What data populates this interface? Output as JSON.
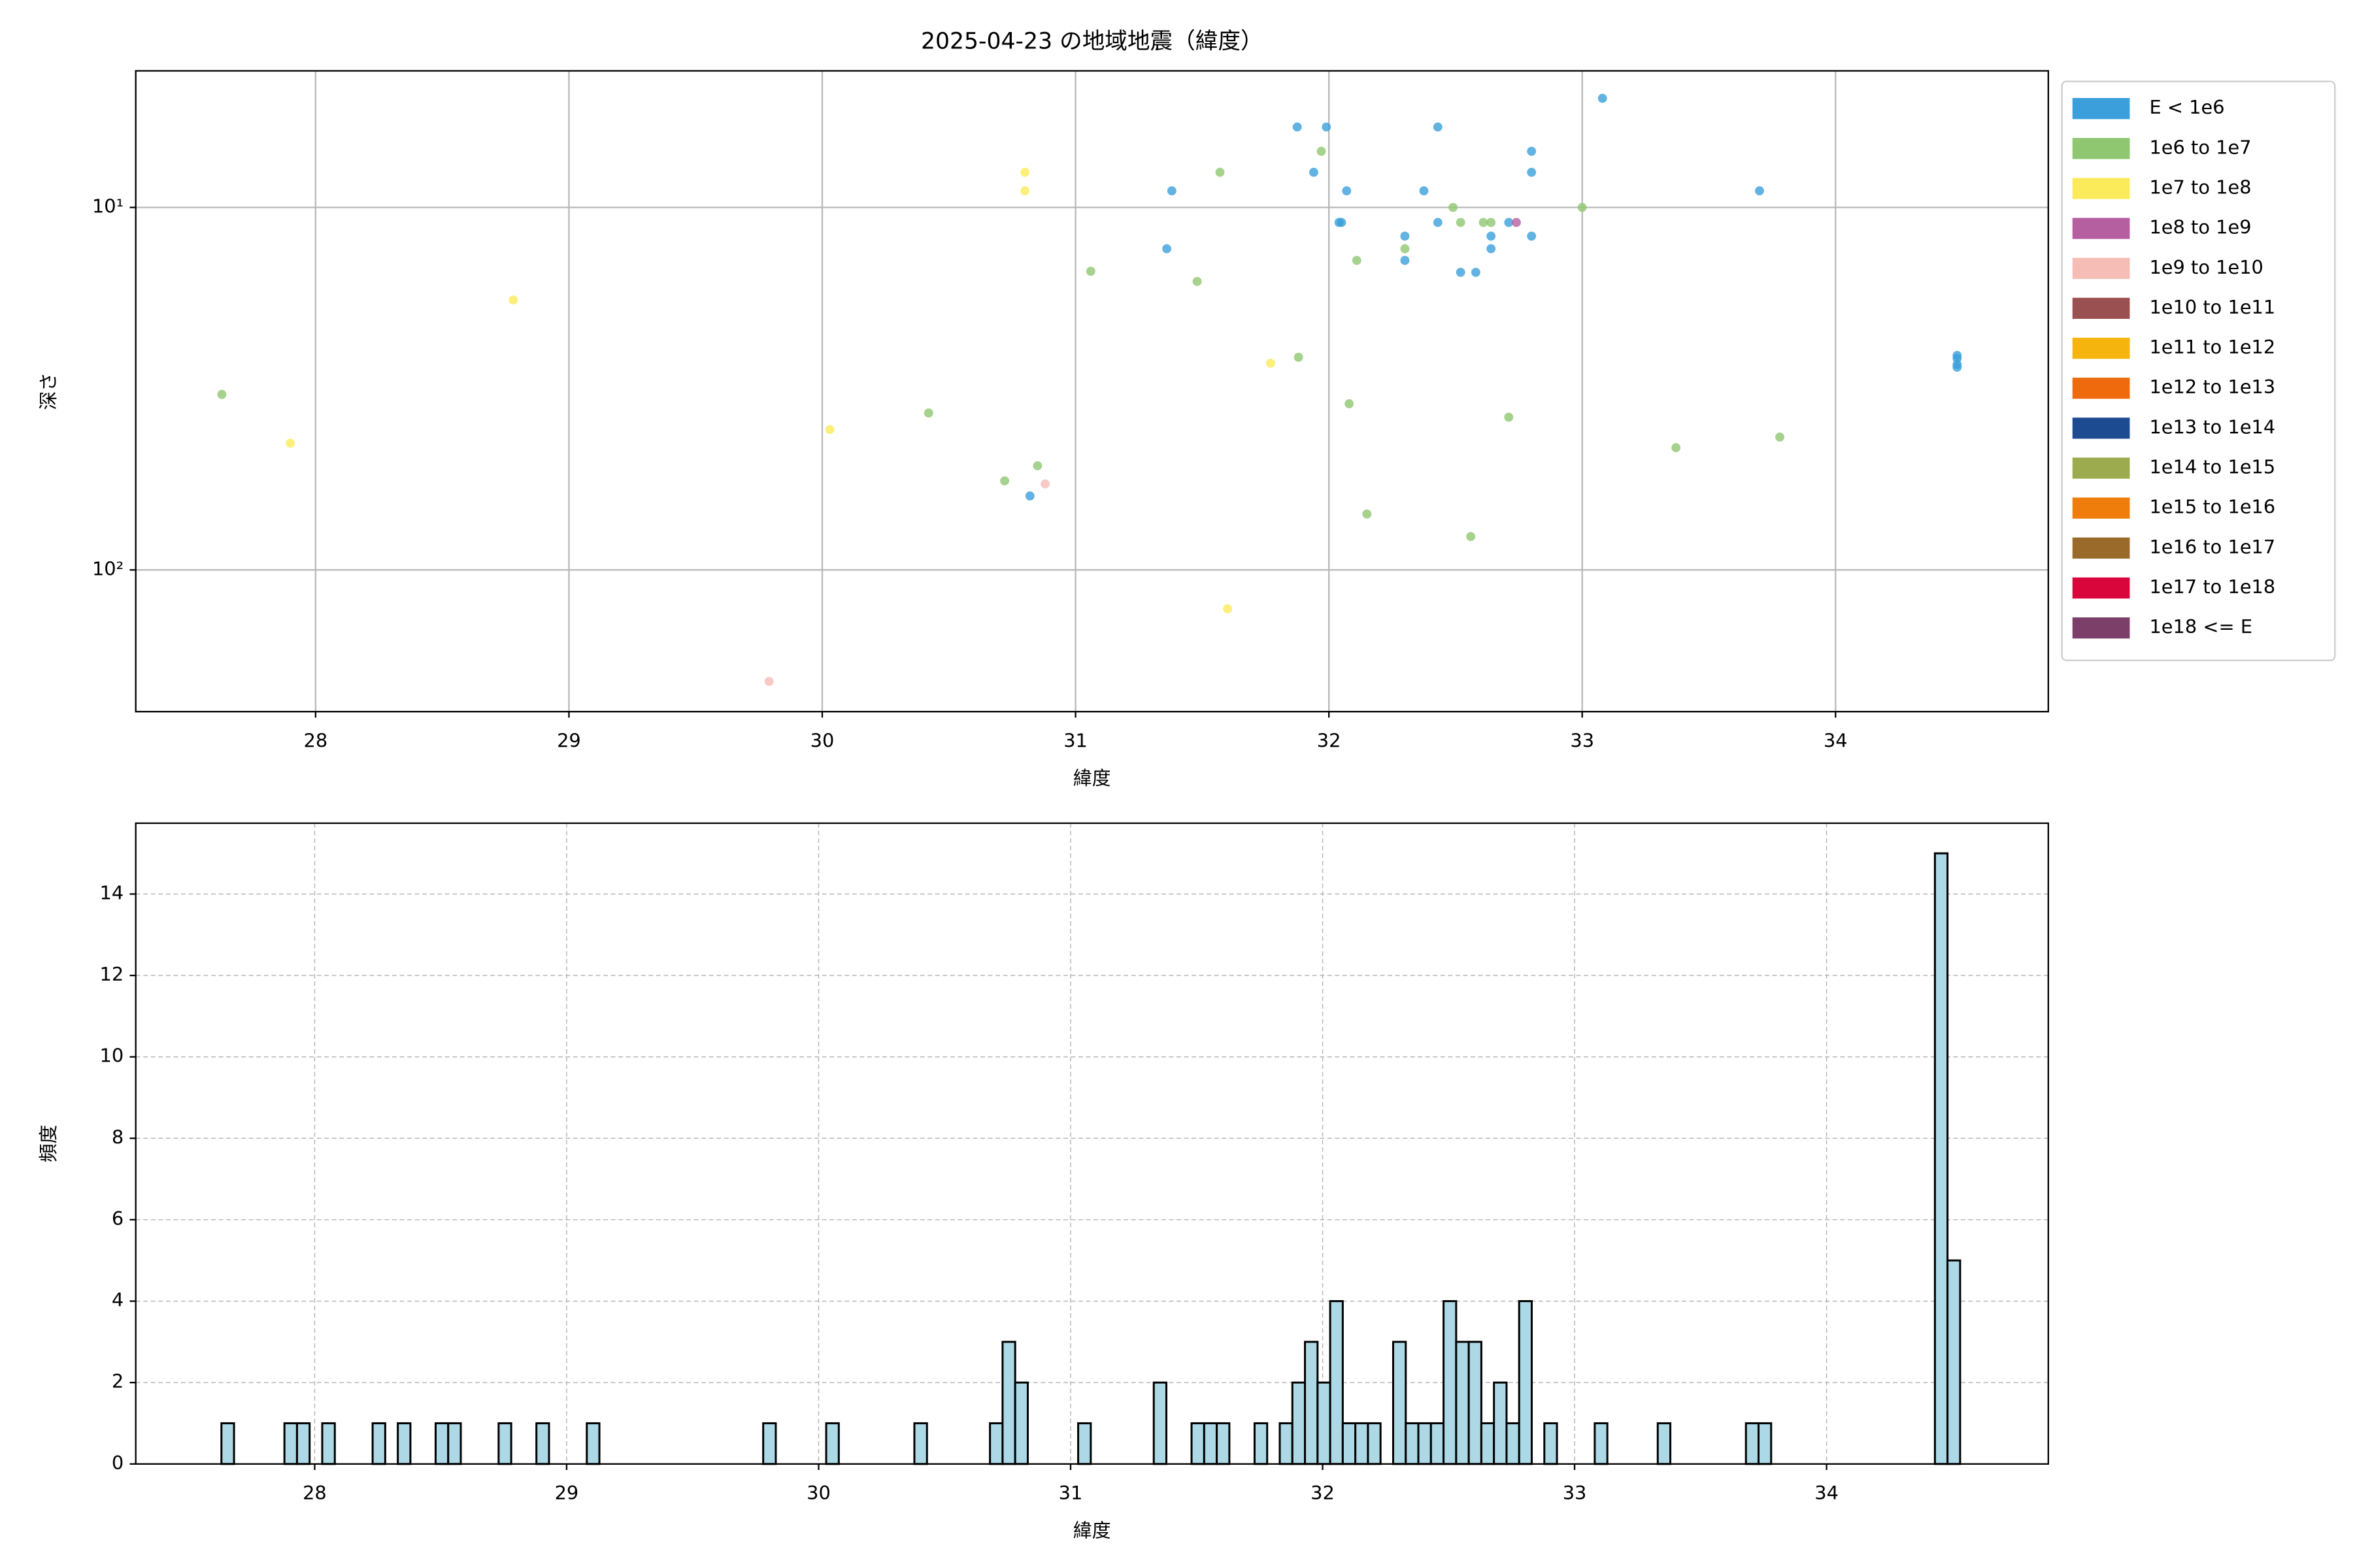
{
  "chart_data": [
    {
      "type": "scatter",
      "title": "2025-04-23 の地域地震（緯度）",
      "x_label": "緯度",
      "y_label": "深さ",
      "xlim": [
        27.29,
        34.84
      ],
      "xticks": [
        28,
        29,
        30,
        31,
        32,
        33,
        34
      ],
      "ylim": [
        4.2,
        246
      ],
      "log_y": true,
      "invert_y": true,
      "yticks": [
        {
          "value": 10,
          "label": "10¹"
        },
        {
          "value": 100,
          "label": "10²"
        }
      ],
      "grid": "solid",
      "legend": "outside-upper-right",
      "series": [
        {
          "name": "E < 1e6",
          "color": "#3b9fdb",
          "x": [
            31.875,
            31.99,
            32.43,
            33.08,
            31.94,
            31.38,
            32.07,
            32.375,
            33.7,
            32.04,
            32.05,
            32.43,
            32.71,
            32.3,
            32.8,
            31.36,
            32.3,
            32.52,
            32.58,
            32.64,
            32.64,
            32.8,
            32.8,
            30.82,
            34.48,
            34.48,
            34.48,
            34.48
          ],
          "values": [
            6.0,
            6.0,
            6.0,
            5.0,
            8.0,
            9.0,
            9.0,
            9.0,
            9.0,
            11.0,
            11.0,
            11.0,
            11.0,
            12.0,
            12.0,
            13.0,
            14.0,
            15.1,
            15.1,
            12.0,
            13.0,
            7.0,
            8.0,
            62.5,
            25.6,
            26.1,
            27.1,
            27.6
          ]
        },
        {
          "name": "1e6 to 1e7",
          "color": "#8ec76f",
          "x": [
            27.63,
            31.57,
            31.97,
            32.49,
            32.52,
            32.61,
            32.64,
            33.0,
            32.3,
            31.06,
            32.11,
            31.48,
            31.88,
            32.08,
            30.42,
            32.71,
            33.78,
            33.37,
            30.85,
            30.72,
            32.15,
            32.56
          ],
          "values": [
            32.8,
            8.0,
            7.0,
            10.0,
            11.0,
            11.0,
            11.0,
            10.0,
            13.0,
            15.0,
            14.0,
            16.0,
            25.9,
            34.8,
            36.9,
            37.9,
            43.0,
            46.0,
            51.6,
            56.8,
            70.1,
            80.9
          ]
        },
        {
          "name": "1e7 to 1e8",
          "color": "#fbeb5b",
          "x": [
            30.8,
            30.8,
            28.78,
            27.9,
            30.03,
            31.77,
            31.6
          ],
          "values": [
            8.0,
            9.0,
            18.0,
            44.7,
            41.0,
            26.9,
            128
          ]
        },
        {
          "name": "1e8 to 1e9",
          "color": "#b55fa0",
          "x": [
            32.74
          ],
          "values": [
            11.0
          ]
        },
        {
          "name": "1e9 to 1e10",
          "color": "#f5bdb6",
          "x": [
            30.88,
            29.79
          ],
          "values": [
            57.9,
            203
          ]
        },
        {
          "name": "1e10 to 1e11",
          "color": "#9a5050",
          "x": [],
          "values": []
        },
        {
          "name": "1e11 to 1e12",
          "color": "#f6b40e",
          "x": [],
          "values": []
        },
        {
          "name": "1e12 to 1e13",
          "color": "#ee6a0c",
          "x": [],
          "values": []
        },
        {
          "name": "1e13 to 1e14",
          "color": "#1c4b91",
          "x": [],
          "values": []
        },
        {
          "name": "1e14 to 1e15",
          "color": "#9bab4d",
          "x": [],
          "values": []
        },
        {
          "name": "1e15 to 1e16",
          "color": "#ee7d0c",
          "x": [],
          "values": []
        },
        {
          "name": "1e16 to 1e17",
          "color": "#9a6a2a",
          "x": [],
          "values": []
        },
        {
          "name": "1e17 to 1e18",
          "color": "#d9063b",
          "x": [],
          "values": []
        },
        {
          "name": "1e18 <= E",
          "color": "#7b3f6a",
          "x": [],
          "values": []
        }
      ]
    },
    {
      "type": "histogram",
      "x_label": "緯度",
      "y_label": "頻度",
      "color": "#add8e6",
      "edge_color": "#000000",
      "xlim": [
        27.29,
        34.88
      ],
      "xticks": [
        28,
        29,
        30,
        31,
        32,
        33,
        34
      ],
      "ylim": [
        0,
        15.74
      ],
      "yticks": [
        0,
        2,
        4,
        6,
        8,
        10,
        12,
        14
      ],
      "grid": "dashed",
      "bins": [
        27.63,
        27.68,
        27.73,
        27.78,
        27.83,
        27.88,
        27.93,
        27.98,
        28.03,
        28.08,
        28.13,
        28.18,
        28.23,
        28.28,
        28.33,
        28.38,
        28.43,
        28.48,
        28.53,
        28.58,
        28.63,
        28.68,
        28.73,
        28.78,
        28.83,
        28.88,
        28.93,
        28.98,
        29.03,
        29.08,
        29.13,
        29.18,
        29.23,
        29.28,
        29.33,
        29.38,
        29.43,
        29.48,
        29.53,
        29.58,
        29.63,
        29.68,
        29.73,
        29.78,
        29.83,
        29.88,
        29.93,
        29.98,
        30.03,
        30.08,
        30.13,
        30.18,
        30.23,
        30.28,
        30.33,
        30.38,
        30.43,
        30.48,
        30.53,
        30.58,
        30.63,
        30.68,
        30.73,
        30.78,
        30.83,
        30.88,
        30.93,
        30.98,
        31.03,
        31.08,
        31.13,
        31.18,
        31.23,
        31.28,
        31.33,
        31.38,
        31.43,
        31.48,
        31.53,
        31.58,
        31.63,
        31.68,
        31.73,
        31.78,
        31.83,
        31.88,
        31.93,
        31.98,
        32.03,
        32.08,
        32.13,
        32.18,
        32.23,
        32.28,
        32.33,
        32.38,
        32.43,
        32.48,
        32.53,
        32.58,
        32.63,
        32.68,
        32.73,
        32.78,
        32.83,
        32.88,
        32.93,
        32.98,
        33.03,
        33.08,
        33.13,
        33.18,
        33.23,
        33.28,
        33.33,
        33.38,
        33.43,
        33.48,
        33.53,
        33.58,
        33.63,
        33.68,
        33.73,
        33.78,
        33.83,
        33.88,
        33.93,
        33.98,
        34.03,
        34.08,
        34.13,
        34.18,
        34.23,
        34.28,
        34.33,
        34.38,
        34.43,
        34.48,
        34.53
      ],
      "counts": [
        1,
        0,
        0,
        0,
        0,
        1,
        1,
        0,
        1,
        0,
        0,
        0,
        1,
        0,
        1,
        0,
        0,
        1,
        1,
        0,
        0,
        0,
        1,
        0,
        0,
        1,
        0,
        0,
        0,
        1,
        0,
        0,
        0,
        0,
        0,
        0,
        0,
        0,
        0,
        0,
        0,
        0,
        0,
        1,
        0,
        0,
        0,
        0,
        1,
        0,
        0,
        0,
        0,
        0,
        0,
        1,
        0,
        0,
        0,
        0,
        0,
        1,
        3,
        2,
        0,
        0,
        0,
        0,
        1,
        0,
        0,
        0,
        0,
        0,
        2,
        0,
        0,
        1,
        1,
        1,
        0,
        0,
        1,
        0,
        1,
        2,
        3,
        2,
        4,
        1,
        1,
        1,
        0,
        3,
        1,
        1,
        1,
        4,
        3,
        3,
        1,
        2,
        1,
        4,
        0,
        1,
        0,
        0,
        0,
        1,
        0,
        0,
        0,
        0,
        1,
        0,
        0,
        0,
        0,
        0,
        0,
        1,
        1,
        0,
        0,
        0,
        0,
        0,
        0,
        0,
        0,
        0,
        0,
        0,
        0,
        0,
        15,
        5
      ]
    }
  ]
}
